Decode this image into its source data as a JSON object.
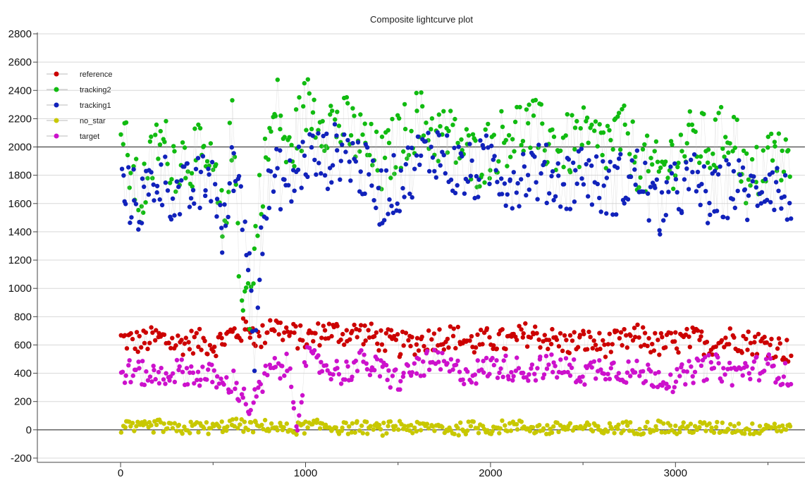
{
  "chart_data": {
    "type": "scatter",
    "title": "Composite lightcurve plot",
    "xlabel": "",
    "ylabel": "",
    "xlim": [
      -450,
      3700
    ],
    "ylim": [
      -230,
      2810
    ],
    "x_ticks": [
      0,
      1000,
      2000,
      3000
    ],
    "y_ticks": [
      -200,
      0,
      200,
      400,
      600,
      800,
      1000,
      1200,
      1400,
      1600,
      1800,
      2000,
      2200,
      2400,
      2600,
      2800
    ],
    "grid": "horizontal",
    "legend_position": "top-left",
    "x_range_of_points": [
      0,
      3620
    ],
    "series": [
      {
        "name": "reference",
        "color": "#cc0000",
        "x": [
          0,
          100,
          200,
          300,
          400,
          500,
          600,
          700,
          750,
          800,
          900,
          1000,
          1100,
          1200,
          1300,
          1400,
          1500,
          1600,
          1700,
          1800,
          1900,
          2000,
          2100,
          2200,
          2300,
          2400,
          2500,
          2600,
          2700,
          2800,
          2900,
          3000,
          3100,
          3200,
          3300,
          3400,
          3500,
          3600
        ],
        "y": [
          640,
          620,
          650,
          610,
          630,
          600,
          680,
          720,
          620,
          760,
          680,
          640,
          700,
          680,
          690,
          640,
          600,
          620,
          650,
          660,
          610,
          640,
          620,
          680,
          650,
          610,
          630,
          600,
          620,
          660,
          600,
          620,
          640,
          600,
          650,
          620,
          610,
          560
        ]
      },
      {
        "name": "tracking2",
        "color": "#11bb11",
        "x": [
          0,
          100,
          200,
          300,
          400,
          500,
          550,
          600,
          650,
          700,
          750,
          800,
          850,
          900,
          1000,
          1100,
          1200,
          1300,
          1400,
          1500,
          1600,
          1700,
          1800,
          1900,
          2000,
          2100,
          2200,
          2300,
          2400,
          2500,
          2600,
          2700,
          2800,
          2900,
          3000,
          3100,
          3200,
          3300,
          3400,
          3500,
          3600
        ],
        "y": [
          2100,
          1600,
          2050,
          1900,
          1950,
          1800,
          1400,
          2200,
          1000,
          900,
          1700,
          2050,
          2300,
          1900,
          2300,
          2200,
          2150,
          2050,
          1850,
          2050,
          2200,
          2100,
          2050,
          1900,
          2000,
          2100,
          2150,
          2050,
          2000,
          2050,
          2000,
          2100,
          1900,
          1800,
          1950,
          2050,
          2000,
          2150,
          1700,
          1950,
          1900
        ]
      },
      {
        "name": "tracking1",
        "color": "#1122bb",
        "x": [
          0,
          100,
          200,
          300,
          400,
          500,
          550,
          600,
          650,
          700,
          720,
          750,
          800,
          850,
          900,
          1000,
          1100,
          1200,
          1300,
          1400,
          1500,
          1600,
          1700,
          1800,
          1900,
          2000,
          2100,
          2200,
          2300,
          2400,
          2500,
          2600,
          2700,
          2800,
          2900,
          3000,
          3100,
          3200,
          3300,
          3400,
          3500,
          3600
        ],
        "y": [
          1700,
          1600,
          1800,
          1650,
          1700,
          1800,
          1300,
          1900,
          1700,
          1000,
          600,
          1350,
          1700,
          1800,
          1700,
          1950,
          1900,
          2000,
          1850,
          1650,
          1750,
          1900,
          2000,
          1850,
          1800,
          1900,
          1750,
          1850,
          1800,
          1750,
          1850,
          1700,
          1750,
          1800,
          1550,
          1700,
          1750,
          1600,
          1750,
          1650,
          1800,
          1600
        ]
      },
      {
        "name": "no_star",
        "color": "#c8c800",
        "x": [
          0,
          100,
          200,
          300,
          400,
          500,
          600,
          700,
          800,
          900,
          1000,
          1100,
          1200,
          1300,
          1400,
          1500,
          1600,
          1700,
          1800,
          1900,
          2000,
          2100,
          2200,
          2300,
          2400,
          2500,
          2600,
          2700,
          2800,
          2900,
          3000,
          3100,
          3200,
          3300,
          3400,
          3500,
          3600
        ],
        "y": [
          20,
          10,
          30,
          0,
          20,
          10,
          40,
          20,
          30,
          0,
          20,
          30,
          10,
          20,
          0,
          30,
          10,
          20,
          0,
          20,
          10,
          30,
          20,
          0,
          20,
          10,
          0,
          20,
          10,
          30,
          0,
          20,
          10,
          20,
          0,
          30,
          10
        ]
      },
      {
        "name": "target",
        "color": "#cc11cc",
        "x": [
          0,
          100,
          200,
          300,
          400,
          500,
          550,
          600,
          650,
          700,
          800,
          900,
          950,
          1000,
          1100,
          1200,
          1300,
          1400,
          1500,
          1600,
          1700,
          1800,
          1900,
          2000,
          2100,
          2200,
          2300,
          2400,
          2500,
          2600,
          2700,
          2800,
          2900,
          3000,
          3100,
          3200,
          3300,
          3400,
          3500,
          3600
        ],
        "y": [
          420,
          400,
          380,
          420,
          390,
          380,
          300,
          350,
          250,
          150,
          420,
          450,
          50,
          500,
          450,
          400,
          480,
          420,
          350,
          450,
          480,
          420,
          400,
          450,
          440,
          420,
          450,
          430,
          400,
          450,
          420,
          400,
          380,
          350,
          420,
          450,
          400,
          430,
          450,
          380
        ]
      }
    ]
  }
}
